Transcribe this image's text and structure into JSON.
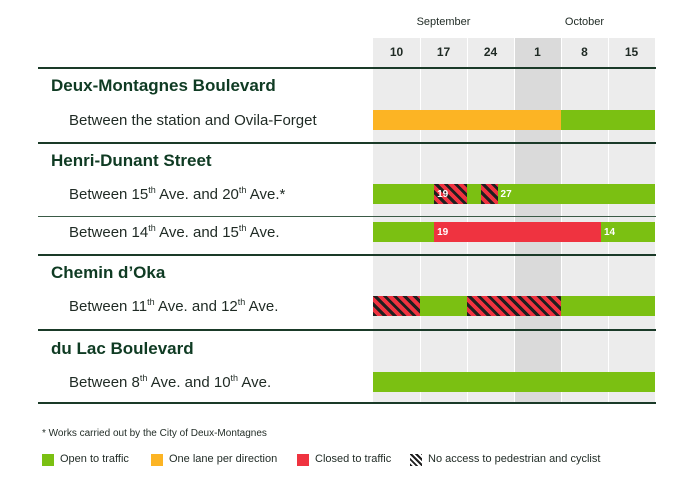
{
  "colors": {
    "open": "#7bc012",
    "one_lane": "#fcb424",
    "closed": "#ef3340",
    "column_light": "#ececec",
    "column_dark": "#dadada",
    "rule": "#1a3a28"
  },
  "months": [
    "September",
    "October"
  ],
  "weeks": [
    "10",
    "17",
    "24",
    "1",
    "8",
    "15"
  ],
  "streets": [
    {
      "name": "Deux-Montagnes Boulevard",
      "segments": [
        {
          "parts": [
            [
              "Between the station and Ovila-Forget",
              false
            ]
          ],
          "bars": [
            {
              "status": "one_lane",
              "from_week": 0,
              "to_week": 4,
              "hatched": false
            },
            {
              "status": "open",
              "from_week": 4,
              "to_week": 6,
              "hatched": false
            }
          ]
        }
      ]
    },
    {
      "name": "Henri-Dunant Street",
      "segments": [
        {
          "parts": [
            [
              "Between 15",
              false
            ],
            [
              "th",
              true
            ],
            [
              " Ave. and 20",
              false
            ],
            [
              "th",
              true
            ],
            [
              " Ave.*",
              false
            ]
          ],
          "bars": [
            {
              "status": "open",
              "from_week": 0,
              "to_week": 1.3,
              "hatched": false
            },
            {
              "status": "closed",
              "from_week": 1.3,
              "to_week": 2.0,
              "hatched": true
            },
            {
              "status": "open",
              "from_week": 2.0,
              "to_week": 2.3,
              "hatched": false
            },
            {
              "status": "closed",
              "from_week": 2.3,
              "to_week": 2.65,
              "hatched": true
            },
            {
              "status": "open",
              "from_week": 2.65,
              "to_week": 6,
              "hatched": false
            }
          ],
          "labels": [
            {
              "text": "19",
              "at_week": 1.3
            },
            {
              "text": "27",
              "at_week": 2.65
            }
          ]
        },
        {
          "parts": [
            [
              "Between 14",
              false
            ],
            [
              "th",
              true
            ],
            [
              " Ave. and 15",
              false
            ],
            [
              "th",
              true
            ],
            [
              " Ave.",
              false
            ]
          ],
          "bars": [
            {
              "status": "open",
              "from_week": 0,
              "to_week": 1.3,
              "hatched": false
            },
            {
              "status": "closed",
              "from_week": 1.3,
              "to_week": 4.85,
              "hatched": false
            },
            {
              "status": "open",
              "from_week": 4.85,
              "to_week": 6,
              "hatched": false
            }
          ],
          "labels": [
            {
              "text": "19",
              "at_week": 1.3
            },
            {
              "text": "14",
              "at_week": 4.85
            }
          ]
        }
      ]
    },
    {
      "name": "Chemin d’Oka",
      "segments": [
        {
          "parts": [
            [
              "Between 11",
              false
            ],
            [
              "th",
              true
            ],
            [
              " Ave. and 12",
              false
            ],
            [
              "th",
              true
            ],
            [
              " Ave.",
              false
            ]
          ],
          "bars": [
            {
              "status": "closed",
              "from_week": 0,
              "to_week": 1,
              "hatched": true
            },
            {
              "status": "open",
              "from_week": 1,
              "to_week": 2,
              "hatched": false
            },
            {
              "status": "closed",
              "from_week": 2,
              "to_week": 4,
              "hatched": true
            },
            {
              "status": "open",
              "from_week": 4,
              "to_week": 6,
              "hatched": false
            }
          ]
        }
      ]
    },
    {
      "name": "du Lac Boulevard",
      "segments": [
        {
          "parts": [
            [
              "Between 8",
              false
            ],
            [
              "th",
              true
            ],
            [
              " Ave. and 10",
              false
            ],
            [
              "th",
              true
            ],
            [
              " Ave.",
              false
            ]
          ],
          "bars": [
            {
              "status": "open",
              "from_week": 0,
              "to_week": 6,
              "hatched": false
            }
          ]
        }
      ]
    }
  ],
  "footnote": "* Works carried out by the City of Deux-Montagnes",
  "legend": [
    {
      "status": "open",
      "label": "Open to traffic"
    },
    {
      "status": "one_lane",
      "label": "One lane per direction"
    },
    {
      "status": "closed",
      "label": "Closed to traffic"
    },
    {
      "status": "hatched",
      "label": "No access to pedestrian and cyclist"
    }
  ]
}
